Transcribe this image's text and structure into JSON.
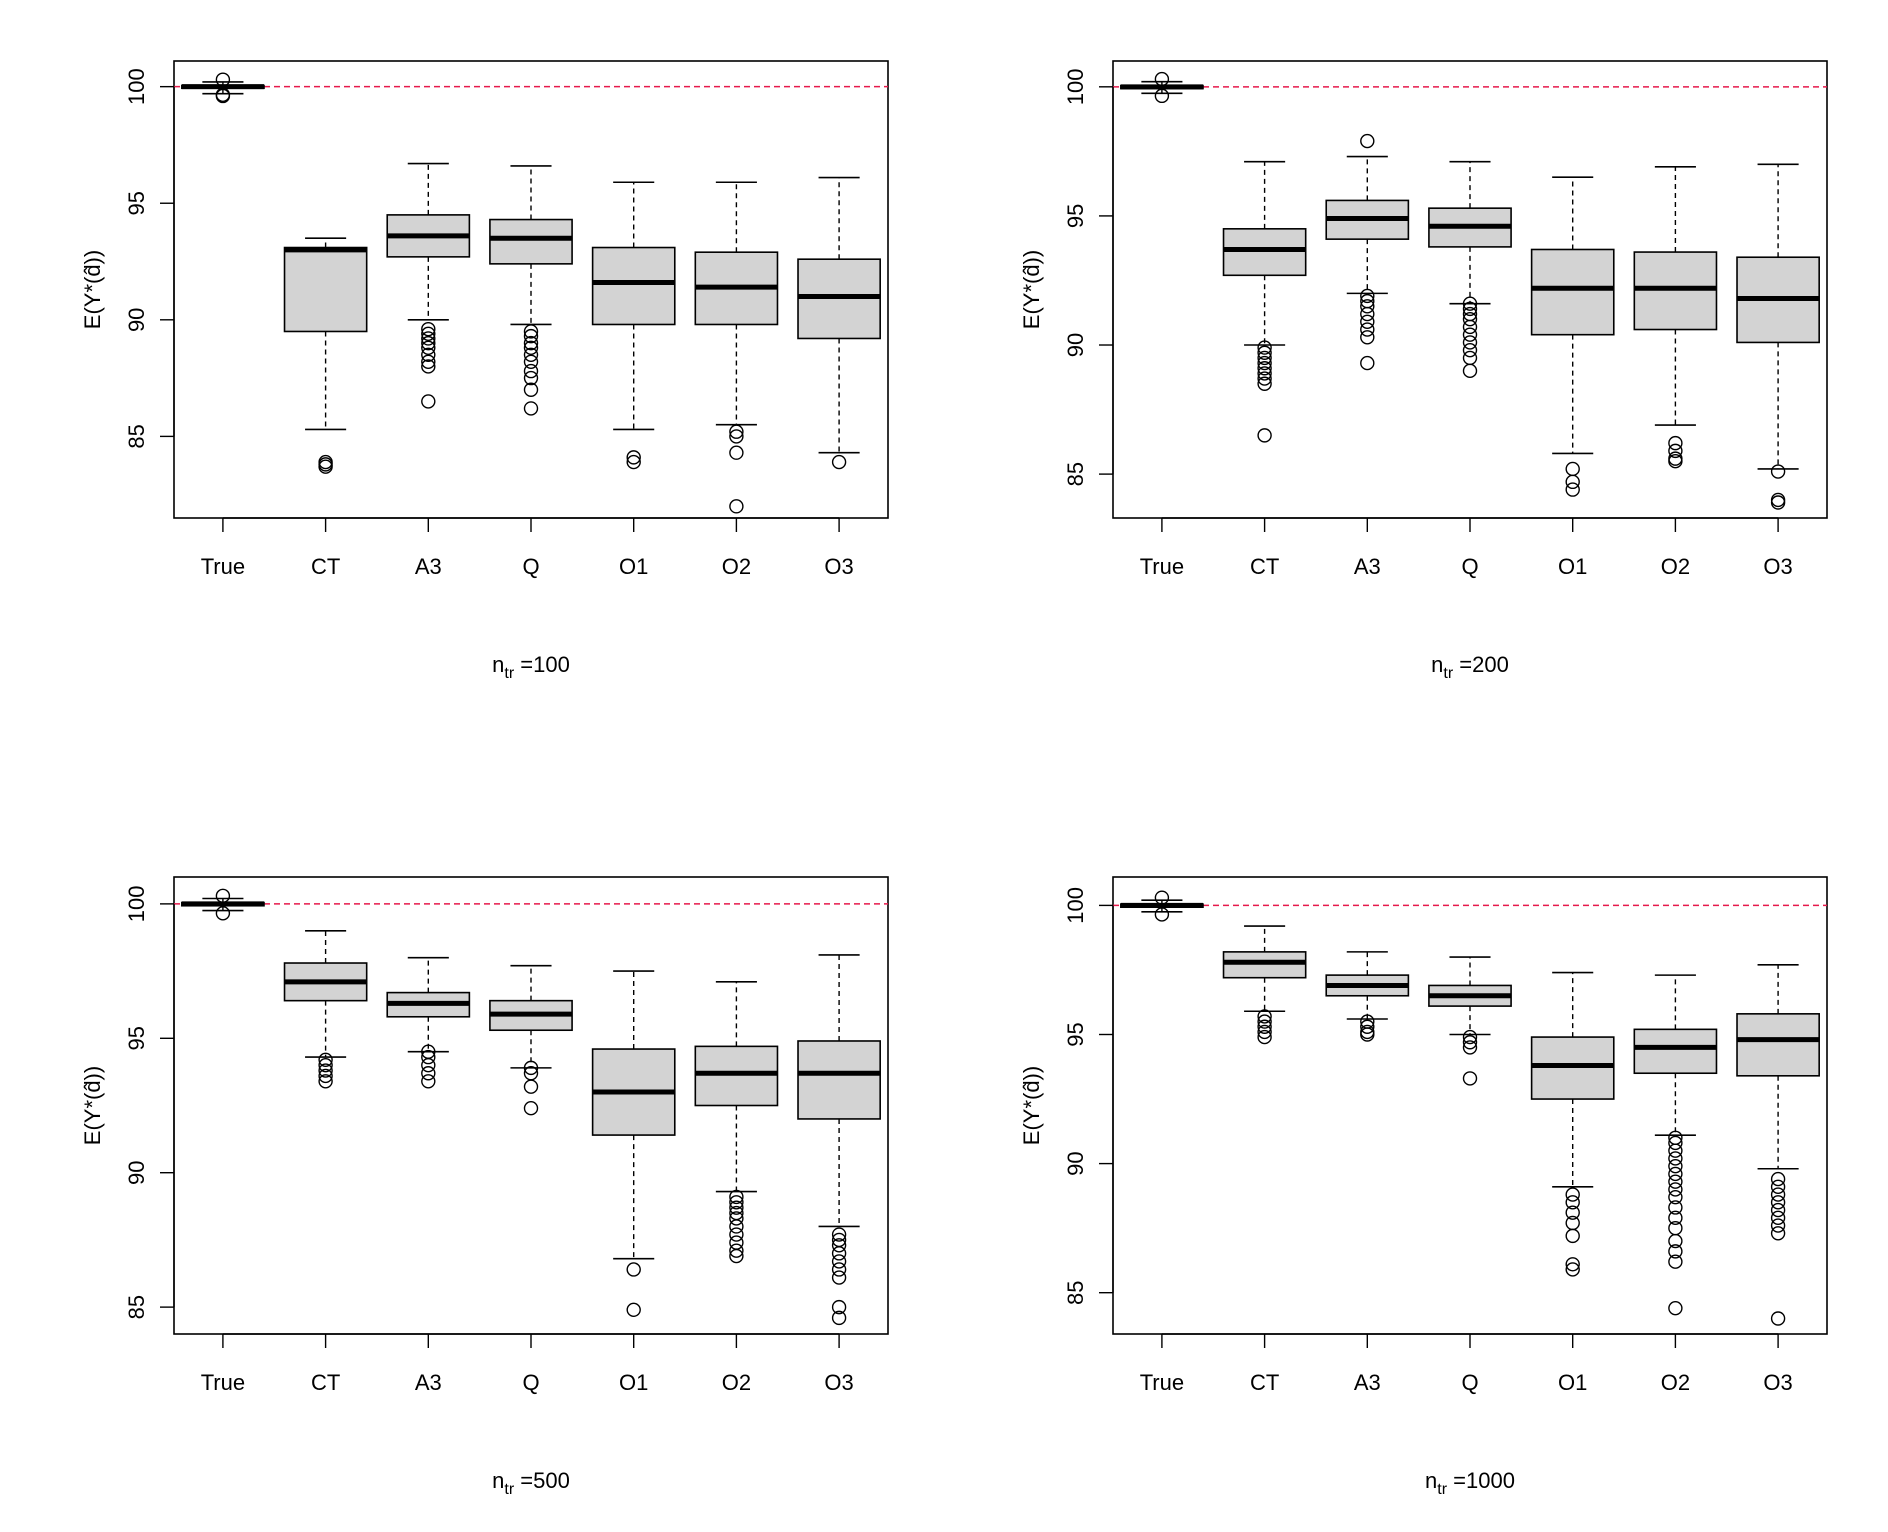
{
  "chart_data": [
    {
      "type": "boxplot",
      "title": "",
      "xlabel_main": "n",
      "xlabel_sub": "tr",
      "xlabel_value": " =100",
      "ylabel": "E(Y*(d̂))",
      "reference_line": 100,
      "reference_color": "#e6194b",
      "ylim": [
        81.5,
        101.1
      ],
      "yticks": [
        85,
        90,
        95,
        100
      ],
      "categories": [
        "True",
        "CT",
        "A3",
        "Q",
        "O1",
        "O2",
        "O3"
      ],
      "boxes": [
        {
          "whisker_low": 99.7,
          "q1": 99.93,
          "median": 100.0,
          "q3": 100.05,
          "whisker_high": 100.2,
          "outliers": [
            99.6,
            100.3,
            99.65
          ]
        },
        {
          "whisker_low": 85.3,
          "q1": 89.5,
          "median": 93.0,
          "q3": 93.1,
          "whisker_high": 93.5,
          "outliers": [
            83.9,
            83.8,
            83.7
          ]
        },
        {
          "whisker_low": 90.0,
          "q1": 92.7,
          "median": 93.6,
          "q3": 94.5,
          "whisker_high": 96.7,
          "outliers": [
            89.6,
            89.4,
            89.2,
            89.0,
            88.8,
            88.5,
            88.2,
            88.0,
            86.5
          ]
        },
        {
          "whisker_low": 89.8,
          "q1": 92.4,
          "median": 93.5,
          "q3": 94.3,
          "whisker_high": 96.6,
          "outliers": [
            89.5,
            89.3,
            89.0,
            88.8,
            88.5,
            88.2,
            87.8,
            87.5,
            87.0,
            86.2
          ]
        },
        {
          "whisker_low": 85.3,
          "q1": 89.8,
          "median": 91.6,
          "q3": 93.1,
          "whisker_high": 95.9,
          "outliers": [
            84.1,
            83.9
          ]
        },
        {
          "whisker_low": 85.5,
          "q1": 89.8,
          "median": 91.4,
          "q3": 92.9,
          "whisker_high": 95.9,
          "outliers": [
            85.2,
            85.0,
            84.3,
            82.0
          ]
        },
        {
          "whisker_low": 84.3,
          "q1": 89.2,
          "median": 91.0,
          "q3": 92.6,
          "whisker_high": 96.1,
          "outliers": [
            83.9
          ]
        }
      ]
    },
    {
      "type": "boxplot",
      "title": "",
      "xlabel_main": "n",
      "xlabel_sub": "tr",
      "xlabel_value": " =200",
      "ylabel": "E(Y*(d̂))",
      "reference_line": 100,
      "reference_color": "#e6194b",
      "ylim": [
        83.3,
        101.0
      ],
      "yticks": [
        85,
        90,
        95,
        100
      ],
      "categories": [
        "True",
        "CT",
        "A3",
        "Q",
        "O1",
        "O2",
        "O3"
      ],
      "boxes": [
        {
          "whisker_low": 99.75,
          "q1": 99.93,
          "median": 100.0,
          "q3": 100.05,
          "whisker_high": 100.2,
          "outliers": [
            99.65,
            100.3
          ]
        },
        {
          "whisker_low": 90.0,
          "q1": 92.7,
          "median": 93.7,
          "q3": 94.5,
          "whisker_high": 97.1,
          "outliers": [
            89.9,
            89.7,
            89.5,
            89.3,
            89.1,
            88.9,
            88.7,
            88.5,
            86.5
          ]
        },
        {
          "whisker_low": 92.0,
          "q1": 94.1,
          "median": 94.9,
          "q3": 95.6,
          "whisker_high": 97.3,
          "outliers": [
            97.9,
            91.9,
            91.7,
            91.5,
            91.2,
            90.9,
            90.6,
            90.3,
            89.3
          ]
        },
        {
          "whisker_low": 91.6,
          "q1": 93.8,
          "median": 94.6,
          "q3": 95.3,
          "whisker_high": 97.1,
          "outliers": [
            91.6,
            91.4,
            91.2,
            91.0,
            90.7,
            90.4,
            90.1,
            89.8,
            89.5,
            89.0
          ]
        },
        {
          "whisker_low": 85.8,
          "q1": 90.4,
          "median": 92.2,
          "q3": 93.7,
          "whisker_high": 96.5,
          "outliers": [
            85.2,
            84.7,
            84.4
          ]
        },
        {
          "whisker_low": 86.9,
          "q1": 90.6,
          "median": 92.2,
          "q3": 93.6,
          "whisker_high": 96.9,
          "outliers": [
            86.2,
            85.9,
            85.6,
            85.5
          ]
        },
        {
          "whisker_low": 85.2,
          "q1": 90.1,
          "median": 91.8,
          "q3": 93.4,
          "whisker_high": 97.0,
          "outliers": [
            85.1,
            84.0,
            83.9
          ]
        }
      ]
    },
    {
      "type": "boxplot",
      "title": "",
      "xlabel_main": "n",
      "xlabel_sub": "tr",
      "xlabel_value": " =500",
      "ylabel": "E(Y*(d̂))",
      "reference_line": 100,
      "reference_color": "#e6194b",
      "ylim": [
        84.0,
        101.0
      ],
      "yticks": [
        85,
        90,
        95,
        100
      ],
      "categories": [
        "True",
        "CT",
        "A3",
        "Q",
        "O1",
        "O2",
        "O3"
      ],
      "boxes": [
        {
          "whisker_low": 99.75,
          "q1": 99.93,
          "median": 100.0,
          "q3": 100.05,
          "whisker_high": 100.2,
          "outliers": [
            99.65,
            100.3
          ]
        },
        {
          "whisker_low": 94.3,
          "q1": 96.4,
          "median": 97.1,
          "q3": 97.8,
          "whisker_high": 99.0,
          "outliers": [
            94.2,
            94.0,
            93.8,
            93.6,
            93.4
          ]
        },
        {
          "whisker_low": 94.5,
          "q1": 95.8,
          "median": 96.3,
          "q3": 96.7,
          "whisker_high": 98.0,
          "outliers": [
            94.5,
            94.3,
            94.0,
            93.7,
            93.4
          ]
        },
        {
          "whisker_low": 93.9,
          "q1": 95.3,
          "median": 95.9,
          "q3": 96.4,
          "whisker_high": 97.7,
          "outliers": [
            93.9,
            93.7,
            93.2,
            92.4
          ]
        },
        {
          "whisker_low": 86.8,
          "q1": 91.4,
          "median": 93.0,
          "q3": 94.6,
          "whisker_high": 97.5,
          "outliers": [
            86.4,
            84.9
          ]
        },
        {
          "whisker_low": 89.3,
          "q1": 92.5,
          "median": 93.7,
          "q3": 94.7,
          "whisker_high": 97.1,
          "outliers": [
            89.1,
            88.9,
            88.7,
            88.5,
            88.3,
            88.0,
            87.7,
            87.4,
            87.1,
            86.9
          ]
        },
        {
          "whisker_low": 88.0,
          "q1": 92.0,
          "median": 93.7,
          "q3": 94.9,
          "whisker_high": 98.1,
          "outliers": [
            87.7,
            87.5,
            87.3,
            87.0,
            86.7,
            86.4,
            86.1,
            85.0,
            84.6
          ]
        }
      ]
    },
    {
      "type": "boxplot",
      "title": "",
      "xlabel_main": "n",
      "xlabel_sub": "tr",
      "xlabel_value": " =1000",
      "ylabel": "E(Y*(d̂))",
      "reference_line": 100,
      "reference_color": "#e6194b",
      "ylim": [
        83.4,
        101.1
      ],
      "yticks": [
        85,
        90,
        95,
        100
      ],
      "categories": [
        "True",
        "CT",
        "A3",
        "Q",
        "O1",
        "O2",
        "O3"
      ],
      "boxes": [
        {
          "whisker_low": 99.75,
          "q1": 99.93,
          "median": 100.0,
          "q3": 100.05,
          "whisker_high": 100.2,
          "outliers": [
            99.65,
            100.3
          ]
        },
        {
          "whisker_low": 95.9,
          "q1": 97.2,
          "median": 97.8,
          "q3": 98.2,
          "whisker_high": 99.2,
          "outliers": [
            95.7,
            95.5,
            95.3,
            95.1,
            94.9
          ]
        },
        {
          "whisker_low": 95.6,
          "q1": 96.5,
          "median": 96.9,
          "q3": 97.3,
          "whisker_high": 98.2,
          "outliers": [
            95.5,
            95.3,
            95.1,
            95.0
          ]
        },
        {
          "whisker_low": 95.0,
          "q1": 96.1,
          "median": 96.5,
          "q3": 96.9,
          "whisker_high": 98.0,
          "outliers": [
            94.9,
            94.7,
            94.5,
            93.3
          ]
        },
        {
          "whisker_low": 89.1,
          "q1": 92.5,
          "median": 93.8,
          "q3": 94.9,
          "whisker_high": 97.4,
          "outliers": [
            88.8,
            88.5,
            88.1,
            87.7,
            87.2,
            86.1,
            85.9
          ]
        },
        {
          "whisker_low": 91.1,
          "q1": 93.5,
          "median": 94.5,
          "q3": 95.2,
          "whisker_high": 97.3,
          "outliers": [
            91.0,
            90.8,
            90.5,
            90.2,
            89.9,
            89.6,
            89.3,
            89.0,
            88.7,
            88.3,
            87.9,
            87.5,
            87.0,
            86.6,
            86.2,
            84.4
          ]
        },
        {
          "whisker_low": 89.8,
          "q1": 93.4,
          "median": 94.8,
          "q3": 95.8,
          "whisker_high": 97.7,
          "outliers": [
            89.4,
            89.1,
            88.8,
            88.5,
            88.2,
            87.9,
            87.6,
            87.3,
            84.0
          ]
        }
      ]
    }
  ]
}
